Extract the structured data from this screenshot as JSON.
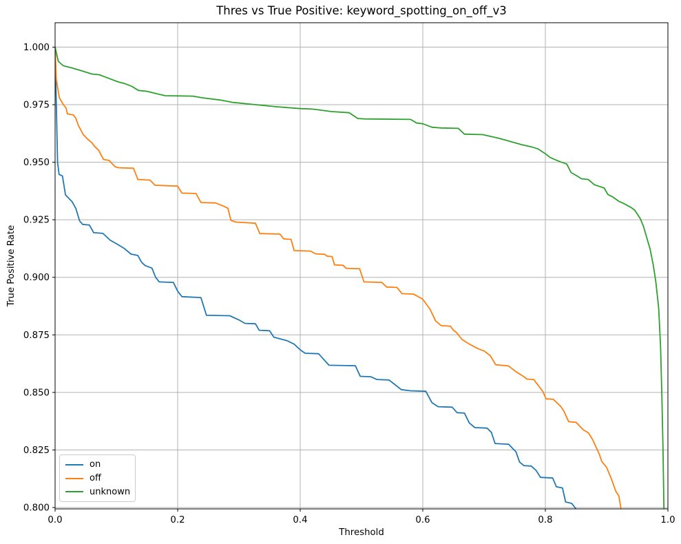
{
  "chart_data": {
    "type": "line",
    "title": "Thres vs True Positive: keyword_spotting_on_off_v3",
    "xlabel": "Threshold",
    "ylabel": "True Positive Rate",
    "xlim": [
      0.0,
      1.0
    ],
    "ylim": [
      0.8,
      1.01
    ],
    "grid": true,
    "grid_color": "#b0b0b0",
    "spine_color": "#000000",
    "legend_position": "lower left",
    "x_ticks": [
      0.0,
      0.2,
      0.4,
      0.6,
      0.8,
      1.0
    ],
    "x_tick_labels": [
      "0.0",
      "0.2",
      "0.4",
      "0.6",
      "0.8",
      "1.0"
    ],
    "y_ticks": [
      0.8,
      0.825,
      0.85,
      0.875,
      0.9,
      0.925,
      0.95,
      0.975,
      1.0
    ],
    "y_tick_labels": [
      "0.800",
      "0.825",
      "0.850",
      "0.875",
      "0.900",
      "0.925",
      "0.950",
      "0.975",
      "1.000"
    ],
    "series": [
      {
        "name": "on",
        "color": "#1f77b4",
        "points": [
          [
            0.0,
            1.0
          ],
          [
            0.002,
            0.975
          ],
          [
            0.004,
            0.95
          ],
          [
            0.0065,
            0.9447
          ],
          [
            0.012,
            0.944
          ],
          [
            0.017,
            0.9358
          ],
          [
            0.028,
            0.9328
          ],
          [
            0.034,
            0.9298
          ],
          [
            0.04,
            0.9245
          ],
          [
            0.045,
            0.923
          ],
          [
            0.056,
            0.9227
          ],
          [
            0.063,
            0.9194
          ],
          [
            0.078,
            0.9191
          ],
          [
            0.09,
            0.9161
          ],
          [
            0.1,
            0.9146
          ],
          [
            0.113,
            0.9125
          ],
          [
            0.124,
            0.9101
          ],
          [
            0.135,
            0.9095
          ],
          [
            0.141,
            0.9066
          ],
          [
            0.147,
            0.9051
          ],
          [
            0.158,
            0.904
          ],
          [
            0.164,
            0.9
          ],
          [
            0.17,
            0.898
          ],
          [
            0.193,
            0.8978
          ],
          [
            0.2,
            0.894
          ],
          [
            0.207,
            0.8916
          ],
          [
            0.238,
            0.8912
          ],
          [
            0.247,
            0.8835
          ],
          [
            0.285,
            0.8833
          ],
          [
            0.3,
            0.8815
          ],
          [
            0.31,
            0.88
          ],
          [
            0.327,
            0.8798
          ],
          [
            0.333,
            0.877
          ],
          [
            0.35,
            0.8768
          ],
          [
            0.357,
            0.874
          ],
          [
            0.378,
            0.8725
          ],
          [
            0.39,
            0.871
          ],
          [
            0.4,
            0.8685
          ],
          [
            0.408,
            0.867
          ],
          [
            0.43,
            0.8668
          ],
          [
            0.447,
            0.8618
          ],
          [
            0.49,
            0.8616
          ],
          [
            0.498,
            0.857
          ],
          [
            0.515,
            0.8568
          ],
          [
            0.525,
            0.8556
          ],
          [
            0.545,
            0.8554
          ],
          [
            0.553,
            0.8537
          ],
          [
            0.565,
            0.8512
          ],
          [
            0.58,
            0.8507
          ],
          [
            0.605,
            0.8505
          ],
          [
            0.615,
            0.8455
          ],
          [
            0.625,
            0.8438
          ],
          [
            0.648,
            0.8436
          ],
          [
            0.656,
            0.8412
          ],
          [
            0.668,
            0.841
          ],
          [
            0.676,
            0.8367
          ],
          [
            0.685,
            0.8347
          ],
          [
            0.705,
            0.8345
          ],
          [
            0.712,
            0.8326
          ],
          [
            0.718,
            0.8278
          ],
          [
            0.74,
            0.8275
          ],
          [
            0.752,
            0.8242
          ],
          [
            0.758,
            0.8197
          ],
          [
            0.765,
            0.8182
          ],
          [
            0.777,
            0.818
          ],
          [
            0.785,
            0.8161
          ],
          [
            0.792,
            0.8131
          ],
          [
            0.812,
            0.8128
          ],
          [
            0.818,
            0.809
          ],
          [
            0.828,
            0.8085
          ],
          [
            0.833,
            0.8024
          ],
          [
            0.843,
            0.8018
          ],
          [
            0.85,
            0.7994
          ]
        ]
      },
      {
        "name": "off",
        "color": "#ff7f0e",
        "points": [
          [
            0.0,
            1.0
          ],
          [
            0.002,
            0.986
          ],
          [
            0.007,
            0.978
          ],
          [
            0.0135,
            0.975
          ],
          [
            0.018,
            0.9735
          ],
          [
            0.02,
            0.971
          ],
          [
            0.03,
            0.9705
          ],
          [
            0.034,
            0.969
          ],
          [
            0.038,
            0.966
          ],
          [
            0.046,
            0.962
          ],
          [
            0.053,
            0.96
          ],
          [
            0.06,
            0.9585
          ],
          [
            0.064,
            0.957
          ],
          [
            0.071,
            0.9552
          ],
          [
            0.079,
            0.9512
          ],
          [
            0.088,
            0.9508
          ],
          [
            0.098,
            0.948
          ],
          [
            0.104,
            0.9476
          ],
          [
            0.128,
            0.9474
          ],
          [
            0.135,
            0.9425
          ],
          [
            0.155,
            0.9422
          ],
          [
            0.163,
            0.94
          ],
          [
            0.2,
            0.9396
          ],
          [
            0.207,
            0.9366
          ],
          [
            0.23,
            0.9364
          ],
          [
            0.238,
            0.9325
          ],
          [
            0.262,
            0.9323
          ],
          [
            0.274,
            0.931
          ],
          [
            0.282,
            0.93
          ],
          [
            0.287,
            0.9247
          ],
          [
            0.295,
            0.924
          ],
          [
            0.327,
            0.9235
          ],
          [
            0.334,
            0.919
          ],
          [
            0.367,
            0.9188
          ],
          [
            0.373,
            0.9167
          ],
          [
            0.385,
            0.9165
          ],
          [
            0.39,
            0.9116
          ],
          [
            0.417,
            0.9114
          ],
          [
            0.425,
            0.9102
          ],
          [
            0.44,
            0.91
          ],
          [
            0.444,
            0.9092
          ],
          [
            0.452,
            0.909
          ],
          [
            0.456,
            0.9054
          ],
          [
            0.47,
            0.9052
          ],
          [
            0.475,
            0.9039
          ],
          [
            0.497,
            0.9037
          ],
          [
            0.504,
            0.898
          ],
          [
            0.533,
            0.8978
          ],
          [
            0.541,
            0.8958
          ],
          [
            0.558,
            0.8956
          ],
          [
            0.566,
            0.8929
          ],
          [
            0.585,
            0.8927
          ],
          [
            0.6,
            0.8905
          ],
          [
            0.612,
            0.886
          ],
          [
            0.621,
            0.881
          ],
          [
            0.63,
            0.879
          ],
          [
            0.645,
            0.8788
          ],
          [
            0.65,
            0.877
          ],
          [
            0.655,
            0.876
          ],
          [
            0.664,
            0.873
          ],
          [
            0.676,
            0.871
          ],
          [
            0.69,
            0.869
          ],
          [
            0.7,
            0.868
          ],
          [
            0.71,
            0.866
          ],
          [
            0.719,
            0.862
          ],
          [
            0.74,
            0.8615
          ],
          [
            0.752,
            0.859
          ],
          [
            0.764,
            0.857
          ],
          [
            0.77,
            0.8558
          ],
          [
            0.781,
            0.8556
          ],
          [
            0.796,
            0.8504
          ],
          [
            0.801,
            0.8472
          ],
          [
            0.813,
            0.847
          ],
          [
            0.825,
            0.8439
          ],
          [
            0.83,
            0.842
          ],
          [
            0.838,
            0.8373
          ],
          [
            0.85,
            0.837
          ],
          [
            0.862,
            0.8337
          ],
          [
            0.87,
            0.8325
          ],
          [
            0.877,
            0.8296
          ],
          [
            0.888,
            0.8232
          ],
          [
            0.892,
            0.82
          ],
          [
            0.9,
            0.8174
          ],
          [
            0.908,
            0.8123
          ],
          [
            0.915,
            0.807
          ],
          [
            0.92,
            0.805
          ],
          [
            0.9235,
            0.7994
          ]
        ]
      },
      {
        "name": "unknown",
        "color": "#2ca02c",
        "points": [
          [
            0.0,
            1.0
          ],
          [
            0.005,
            0.994
          ],
          [
            0.007,
            0.9934
          ],
          [
            0.0135,
            0.9919
          ],
          [
            0.027,
            0.991
          ],
          [
            0.042,
            0.9898
          ],
          [
            0.06,
            0.9883
          ],
          [
            0.072,
            0.988
          ],
          [
            0.08,
            0.9872
          ],
          [
            0.102,
            0.985
          ],
          [
            0.113,
            0.9842
          ],
          [
            0.125,
            0.983
          ],
          [
            0.136,
            0.9812
          ],
          [
            0.15,
            0.9808
          ],
          [
            0.17,
            0.9795
          ],
          [
            0.18,
            0.9789
          ],
          [
            0.225,
            0.9787
          ],
          [
            0.24,
            0.978
          ],
          [
            0.27,
            0.977
          ],
          [
            0.29,
            0.976
          ],
          [
            0.327,
            0.975
          ],
          [
            0.361,
            0.9741
          ],
          [
            0.4,
            0.9733
          ],
          [
            0.42,
            0.9731
          ],
          [
            0.451,
            0.972
          ],
          [
            0.48,
            0.9715
          ],
          [
            0.494,
            0.969
          ],
          [
            0.505,
            0.9688
          ],
          [
            0.58,
            0.9686
          ],
          [
            0.59,
            0.967
          ],
          [
            0.6,
            0.9667
          ],
          [
            0.615,
            0.9652
          ],
          [
            0.63,
            0.9649
          ],
          [
            0.658,
            0.9647
          ],
          [
            0.668,
            0.9622
          ],
          [
            0.698,
            0.962
          ],
          [
            0.724,
            0.9604
          ],
          [
            0.743,
            0.959
          ],
          [
            0.762,
            0.9576
          ],
          [
            0.777,
            0.9567
          ],
          [
            0.788,
            0.9558
          ],
          [
            0.8,
            0.9537
          ],
          [
            0.807,
            0.9522
          ],
          [
            0.814,
            0.9513
          ],
          [
            0.825,
            0.9501
          ],
          [
            0.835,
            0.9492
          ],
          [
            0.842,
            0.9455
          ],
          [
            0.85,
            0.9443
          ],
          [
            0.859,
            0.9428
          ],
          [
            0.87,
            0.9425
          ],
          [
            0.88,
            0.9402
          ],
          [
            0.896,
            0.9388
          ],
          [
            0.902,
            0.936
          ],
          [
            0.91,
            0.9349
          ],
          [
            0.92,
            0.933
          ],
          [
            0.927,
            0.9322
          ],
          [
            0.94,
            0.9303
          ],
          [
            0.946,
            0.9291
          ],
          [
            0.955,
            0.9255
          ],
          [
            0.96,
            0.9222
          ],
          [
            0.965,
            0.9176
          ],
          [
            0.971,
            0.9122
          ],
          [
            0.976,
            0.9055
          ],
          [
            0.98,
            0.8986
          ],
          [
            0.983,
            0.8914
          ],
          [
            0.985,
            0.8865
          ],
          [
            0.988,
            0.87
          ],
          [
            0.99,
            0.85
          ],
          [
            0.992,
            0.825
          ],
          [
            0.9935,
            0.7994
          ]
        ]
      }
    ]
  }
}
